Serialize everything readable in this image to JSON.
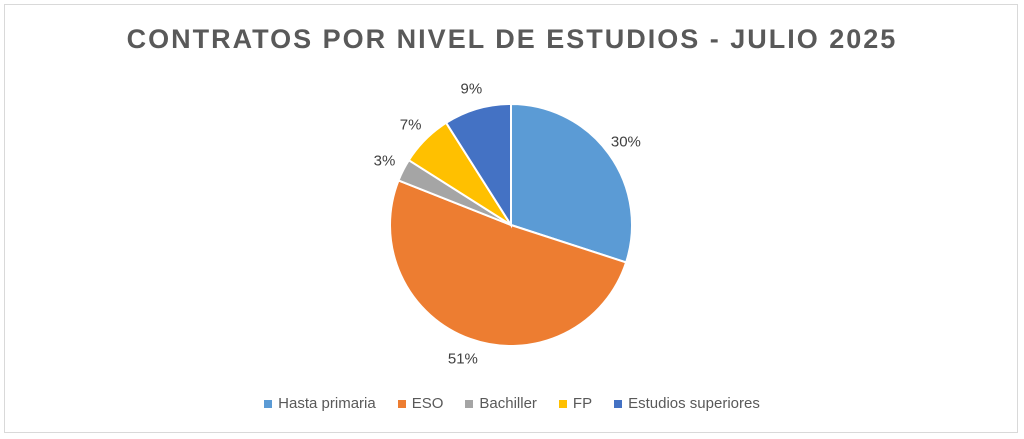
{
  "chart_data": {
    "type": "pie",
    "title": "CONTRATOS POR NIVEL DE ESTUDIOS - JULIO 2025",
    "categories": [
      "Hasta primaria",
      "ESO",
      "Bachiller",
      "FP",
      "Estudios superiores"
    ],
    "values": [
      30,
      51,
      3,
      7,
      9
    ],
    "labels": [
      "30%",
      "51%",
      "3%",
      "7%",
      "9%"
    ],
    "colors": [
      "#5B9BD5",
      "#ED7D31",
      "#A5A5A5",
      "#FFC000",
      "#4472C4"
    ],
    "start": "top, clockwise",
    "legend_position": "bottom"
  }
}
